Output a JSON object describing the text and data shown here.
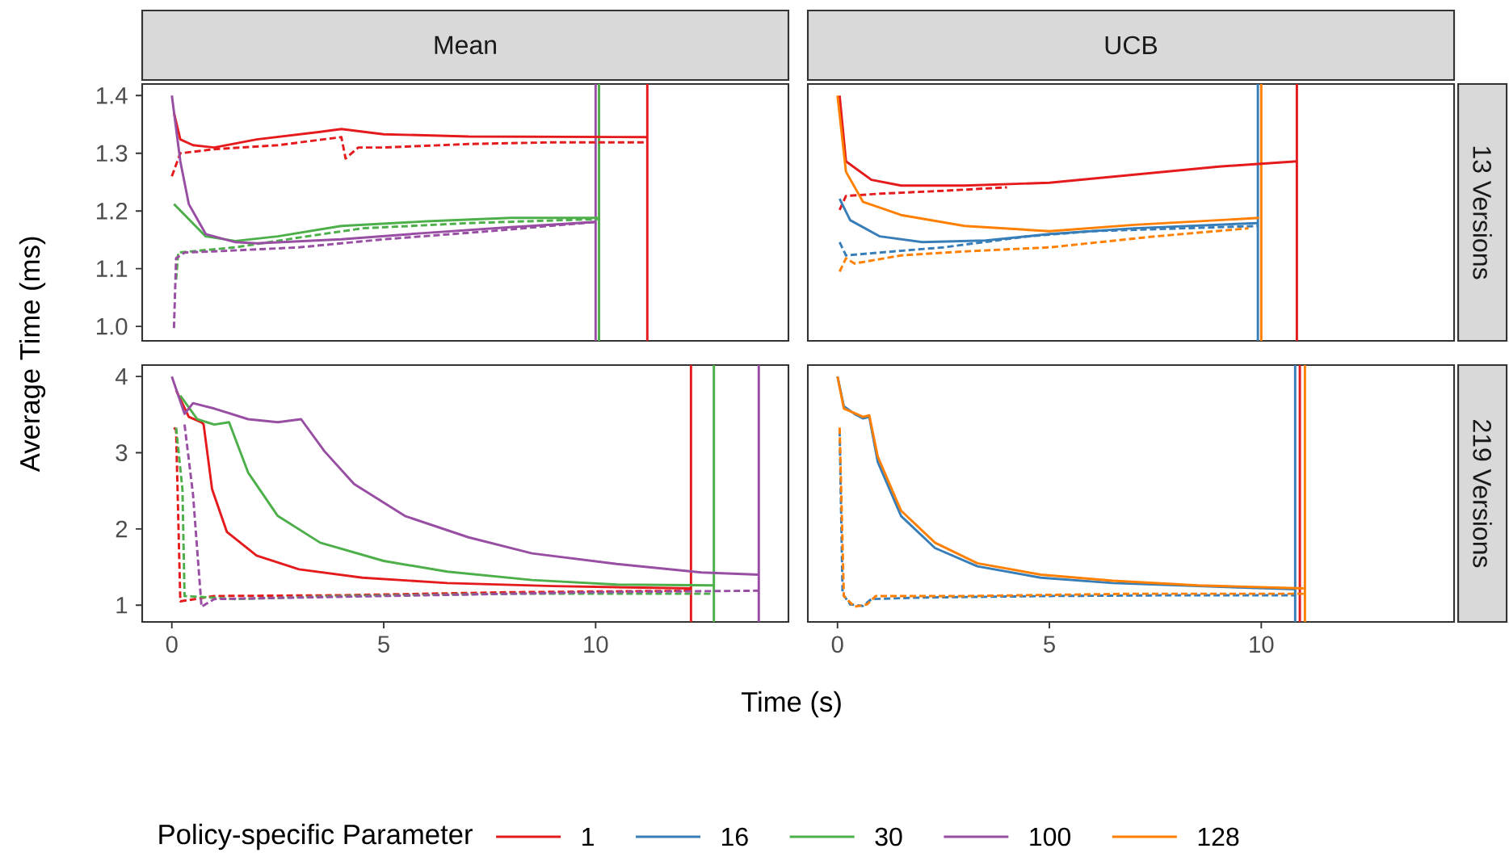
{
  "chart_data": [
    {
      "type": "line",
      "title": "Mean",
      "ylabel": "Average Time (ms)",
      "legend": "bottom",
      "legend_title": "Policy-specific Parameter",
      "xlim": [
        -0.7,
        14.55
      ],
      "ylim": [
        0.975,
        1.42
      ],
      "xticks": [
        0,
        5,
        10
      ],
      "yticks": [
        {
          "value": 1,
          "label": "1.0"
        },
        1.1,
        1.2,
        1.3,
        1.4
      ],
      "tick_labels": "y",
      "series": [
        {
          "name": "1",
          "color": "#e41a1c",
          "x": [
            0.05,
            0.2,
            0.5,
            1,
            2,
            3.5,
            4,
            5,
            7,
            11.2
          ],
          "values": [
            1.37,
            1.324,
            1.314,
            1.31,
            1.324,
            1.337,
            1.342,
            1.333,
            1.329,
            1.328
          ]
        },
        {
          "color": "#e41a1c",
          "line_style": "dashed",
          "x": [
            0,
            0.2,
            1,
            2.5,
            4,
            4.1,
            4.4,
            5,
            7,
            9,
            11.2
          ],
          "values": [
            1.26,
            1.3,
            1.307,
            1.314,
            1.328,
            1.291,
            1.31,
            1.31,
            1.316,
            1.319,
            1.319
          ]
        },
        {
          "name": "30",
          "color": "#4daf4a",
          "x": [
            0.05,
            0.8,
            1.5,
            2.5,
            4,
            6,
            8,
            10.05
          ],
          "values": [
            1.212,
            1.156,
            1.148,
            1.156,
            1.174,
            1.182,
            1.188,
            1.188
          ]
        },
        {
          "color": "#4daf4a",
          "line_style": "dashed",
          "x": [
            0.1,
            0.15,
            1.5,
            3,
            4.5,
            7,
            10.05
          ],
          "values": [
            1.081,
            1.128,
            1.137,
            1.154,
            1.17,
            1.179,
            1.186
          ]
        },
        {
          "name": "100",
          "color": "#984ea3",
          "x": [
            0,
            0.2,
            0.4,
            0.8,
            1.5,
            2,
            4,
            6,
            8,
            10
          ],
          "values": [
            1.4,
            1.286,
            1.212,
            1.16,
            1.146,
            1.144,
            1.151,
            1.162,
            1.172,
            1.181
          ]
        },
        {
          "color": "#984ea3",
          "line_style": "dashed",
          "x": [
            0.05,
            0.1,
            0.3,
            1,
            3,
            5,
            7.5,
            10
          ],
          "values": [
            0.997,
            1.118,
            1.128,
            1.13,
            1.137,
            1.151,
            1.165,
            1.181
          ]
        }
      ],
      "ref_lines": [
        {
          "axis": "x",
          "value": 10,
          "color": "#984ea3"
        },
        {
          "axis": "x",
          "value": 10.08,
          "color": "#4daf4a"
        },
        {
          "axis": "x",
          "value": 11.22,
          "color": "#e41a1c"
        }
      ]
    },
    {
      "type": "line",
      "title": "UCB",
      "y2label": "13 Versions",
      "legend": "bottom",
      "xlim": [
        -0.7,
        14.55
      ],
      "ylim": [
        0.975,
        1.42
      ],
      "xticks": [
        0,
        5,
        10
      ],
      "yticks": [
        1,
        1.1,
        1.2,
        1.3,
        1.4
      ],
      "tick_labels": false,
      "series": [
        {
          "name": "1",
          "color": "#e41a1c",
          "x": [
            0.05,
            0.2,
            0.8,
            1.5,
            3,
            5,
            7,
            9,
            10.84
          ],
          "values": [
            1.4,
            1.286,
            1.254,
            1.244,
            1.244,
            1.249,
            1.263,
            1.277,
            1.286
          ]
        },
        {
          "color": "#e41a1c",
          "line_style": "dashed",
          "x": [
            0.05,
            0.2,
            1,
            2.5,
            4
          ],
          "values": [
            1.202,
            1.226,
            1.23,
            1.235,
            1.241
          ]
        },
        {
          "name": "16",
          "color": "#377eb8",
          "x": [
            0.05,
            0.3,
            1,
            2,
            3.5,
            5,
            7,
            9.9
          ],
          "values": [
            1.221,
            1.184,
            1.156,
            1.146,
            1.149,
            1.16,
            1.17,
            1.179
          ]
        },
        {
          "color": "#377eb8",
          "line_style": "dashed",
          "x": [
            0.05,
            0.2,
            1,
            2.5,
            4.5,
            6,
            9.9
          ],
          "values": [
            1.146,
            1.123,
            1.128,
            1.137,
            1.156,
            1.165,
            1.174
          ]
        },
        {
          "name": "128",
          "color": "#ff7f00",
          "x": [
            0,
            0.2,
            0.6,
            1.5,
            3,
            5,
            7,
            9.95
          ],
          "values": [
            1.4,
            1.268,
            1.216,
            1.193,
            1.174,
            1.165,
            1.176,
            1.188
          ]
        },
        {
          "color": "#ff7f00",
          "line_style": "dashed",
          "x": [
            0.05,
            0.2,
            0.4,
            1.5,
            3,
            5,
            7.5,
            9.7
          ],
          "values": [
            1.095,
            1.118,
            1.109,
            1.123,
            1.13,
            1.137,
            1.156,
            1.17
          ]
        }
      ],
      "ref_lines": [
        {
          "axis": "x",
          "value": 9.92,
          "color": "#377eb8"
        },
        {
          "axis": "x",
          "value": 10,
          "color": "#ff7f00"
        },
        {
          "axis": "x",
          "value": 10.84,
          "color": "#e41a1c"
        }
      ]
    },
    {
      "type": "line",
      "xlabel": "Time (s)",
      "xlim": [
        -0.7,
        14.55
      ],
      "ylim": [
        0.78,
        4.15
      ],
      "xticks": [
        0,
        5,
        10
      ],
      "yticks": [
        1,
        2,
        3,
        4
      ],
      "series": [
        {
          "name": "1",
          "color": "#e41a1c",
          "x": [
            0.1,
            0.4,
            0.7,
            0.75,
            0.95,
            1.3,
            2,
            3,
            4.5,
            6.5,
            9,
            12.25
          ],
          "values": [
            3.82,
            3.47,
            3.4,
            3.37,
            2.52,
            1.96,
            1.65,
            1.47,
            1.36,
            1.29,
            1.25,
            1.22
          ]
        },
        {
          "color": "#e41a1c",
          "line_style": "dashed",
          "x": [
            0.05,
            0.1,
            0.2,
            1,
            4,
            8,
            12.25
          ],
          "values": [
            3.33,
            3.3,
            1.05,
            1.12,
            1.13,
            1.17,
            1.19
          ]
        },
        {
          "name": "30",
          "color": "#4daf4a",
          "x": [
            0.2,
            0.6,
            1,
            1.35,
            1.8,
            2.5,
            3.5,
            5,
            6.5,
            8.5,
            10.5,
            12.8
          ],
          "values": [
            3.75,
            3.44,
            3.37,
            3.4,
            2.74,
            2.17,
            1.82,
            1.58,
            1.44,
            1.33,
            1.27,
            1.26
          ]
        },
        {
          "color": "#4daf4a",
          "line_style": "dashed",
          "x": [
            0.1,
            0.25,
            0.3,
            1.5,
            4,
            8,
            12.8
          ],
          "values": [
            3.33,
            2.52,
            1.12,
            1.08,
            1.12,
            1.15,
            1.15
          ]
        },
        {
          "name": "100",
          "color": "#984ea3",
          "x": [
            0,
            0.3,
            0.5,
            1,
            1.8,
            2.5,
            3.05,
            3.6,
            4.3,
            5.5,
            7,
            8.5,
            10.5,
            12.5,
            13.85
          ],
          "values": [
            4,
            3.51,
            3.65,
            3.58,
            3.44,
            3.4,
            3.44,
            3.02,
            2.59,
            2.17,
            1.89,
            1.68,
            1.54,
            1.43,
            1.4
          ]
        },
        {
          "color": "#984ea3",
          "line_style": "dashed",
          "x": [
            0.3,
            0.5,
            0.7,
            1,
            3,
            6,
            10,
            13.85
          ],
          "values": [
            3.37,
            2.45,
            0.98,
            1.08,
            1.1,
            1.13,
            1.17,
            1.19
          ]
        }
      ],
      "ref_lines": [
        {
          "axis": "x",
          "value": 12.25,
          "color": "#e41a1c"
        },
        {
          "axis": "x",
          "value": 12.79,
          "color": "#4daf4a"
        },
        {
          "axis": "x",
          "value": 13.85,
          "color": "#984ea3"
        }
      ]
    },
    {
      "type": "line",
      "y2label": "219 Versions",
      "xlim": [
        -0.7,
        14.55
      ],
      "ylim": [
        0.78,
        4.15
      ],
      "xticks": [
        0,
        5,
        10
      ],
      "yticks": [
        1,
        2,
        3,
        4
      ],
      "tick_labels": "x",
      "series": [
        {
          "name": "16",
          "color": "#377eb8",
          "x": [
            0,
            0.15,
            0.4,
            0.6,
            0.75,
            0.95,
            1.5,
            2.3,
            3.3,
            4.8,
            6.5,
            8.5,
            10.8
          ],
          "values": [
            4,
            3.61,
            3.51,
            3.45,
            3.47,
            2.88,
            2.17,
            1.75,
            1.51,
            1.36,
            1.29,
            1.25,
            1.21
          ]
        },
        {
          "color": "#377eb8",
          "line_style": "dashed",
          "x": [
            0.05,
            0.12,
            0.3,
            0.6,
            0.8,
            2,
            5,
            8,
            10.8
          ],
          "values": [
            3.3,
            1.15,
            1.01,
            0.99,
            1.08,
            1.1,
            1.12,
            1.13,
            1.13
          ]
        },
        {
          "name": "128",
          "color": "#ff7f00",
          "x": [
            0,
            0.15,
            0.4,
            0.6,
            0.75,
            0.95,
            1.5,
            2.3,
            3.3,
            4.8,
            6.5,
            8.5,
            11
          ],
          "values": [
            4,
            3.58,
            3.52,
            3.47,
            3.49,
            2.95,
            2.24,
            1.82,
            1.55,
            1.4,
            1.32,
            1.26,
            1.22
          ]
        },
        {
          "color": "#ff7f00",
          "line_style": "dashed",
          "x": [
            0.05,
            0.15,
            0.4,
            0.7,
            0.9,
            3,
            7,
            11
          ],
          "values": [
            3.33,
            1.12,
            0.98,
            1.01,
            1.12,
            1.12,
            1.15,
            1.15
          ]
        }
      ],
      "ref_lines": [
        {
          "axis": "x",
          "value": 10.8,
          "color": "#377eb8"
        },
        {
          "axis": "x",
          "value": 10.91,
          "color": "#e41a1c"
        },
        {
          "axis": "x",
          "value": 11.03,
          "color": "#ff7f00"
        }
      ]
    }
  ]
}
